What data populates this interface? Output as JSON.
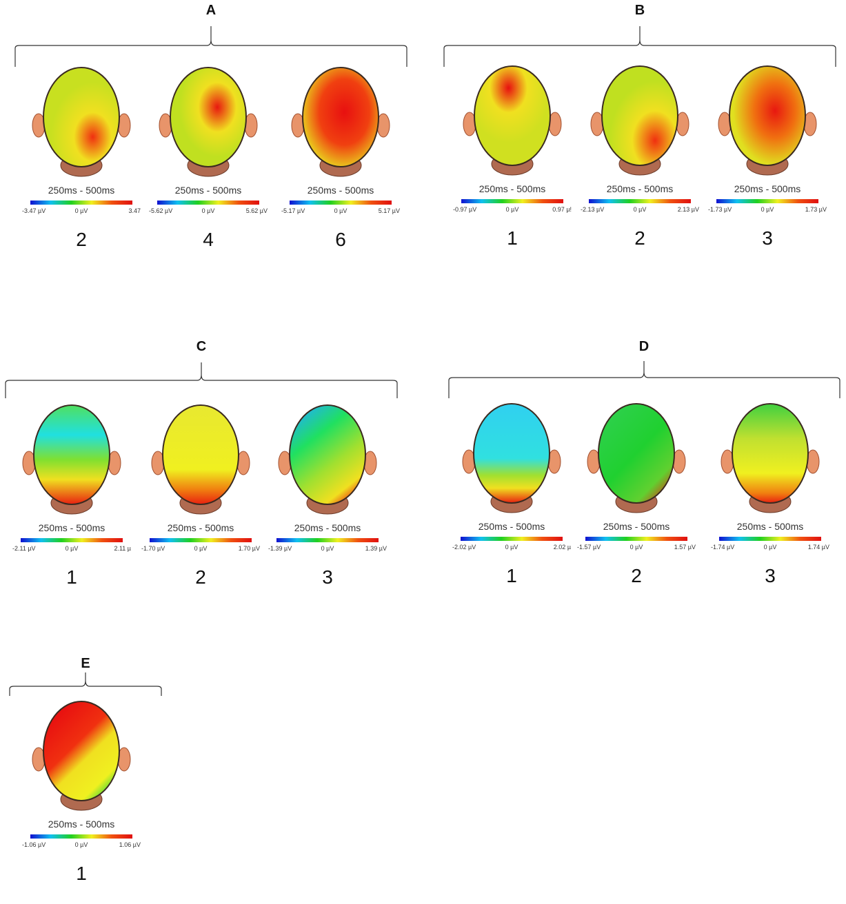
{
  "groups": [
    {
      "label": "A",
      "maps": [
        {
          "time": "250ms - 500ms",
          "min": "-3.47 µV",
          "zero": "0 µV",
          "max": "3.47",
          "condition": "2"
        },
        {
          "time": "250ms - 500ms",
          "min": "-5.62 µV",
          "zero": "0 µV",
          "max": "5.62 µV",
          "condition": "4"
        },
        {
          "time": "250ms - 500ms",
          "min": "-5.17 µV",
          "zero": "0 µV",
          "max": "5.17 µV",
          "condition": "6"
        }
      ]
    },
    {
      "label": "B",
      "maps": [
        {
          "time": "250ms - 500ms",
          "min": "-0.97 µV",
          "zero": "0 µV",
          "max": "0.97 µ!",
          "condition": "1"
        },
        {
          "time": "250ms - 500ms",
          "min": "-2.13 µV",
          "zero": "0 µV",
          "max": "2.13 µV",
          "condition": "2"
        },
        {
          "time": "250ms - 500ms",
          "min": "-1.73 µV",
          "zero": "0 µV",
          "max": "1.73 µV",
          "condition": "3"
        }
      ]
    },
    {
      "label": "C",
      "maps": [
        {
          "time": "250ms - 500ms",
          "min": "-2.11 µV",
          "zero": "0 µV",
          "max": "2.11 µ",
          "condition": "1"
        },
        {
          "time": "250ms - 500ms",
          "min": "-1.70 µV",
          "zero": "0 µV",
          "max": "1.70 µV",
          "condition": "2"
        },
        {
          "time": "250ms - 500ms",
          "min": "-1.39 µV",
          "zero": "0 µV",
          "max": "1.39 µV",
          "condition": "3"
        }
      ]
    },
    {
      "label": "D",
      "maps": [
        {
          "time": "250ms - 500ms",
          "min": "-2.02 µV",
          "zero": "0 µV",
          "max": "2.02 µ",
          "condition": "1"
        },
        {
          "time": "250ms - 500ms",
          "min": "-1.57 µV",
          "zero": "0 µV",
          "max": "1.57 µV",
          "condition": "2"
        },
        {
          "time": "250ms - 500ms",
          "min": "-1.74 µV",
          "zero": "0 µV",
          "max": "1.74 µV",
          "condition": "3"
        }
      ]
    },
    {
      "label": "E",
      "maps": [
        {
          "time": "250ms - 500ms",
          "min": "-1.06 µV",
          "zero": "0 µV",
          "max": "1.06 µV",
          "condition": "1"
        }
      ]
    }
  ],
  "colors": {
    "head_outline": "#3a2a20",
    "skin": "#e8946a",
    "neck": "#b06a50",
    "colormap": [
      "#1010d0",
      "#10c0f0",
      "#20d020",
      "#f0f020",
      "#f05010",
      "#e01010"
    ]
  }
}
